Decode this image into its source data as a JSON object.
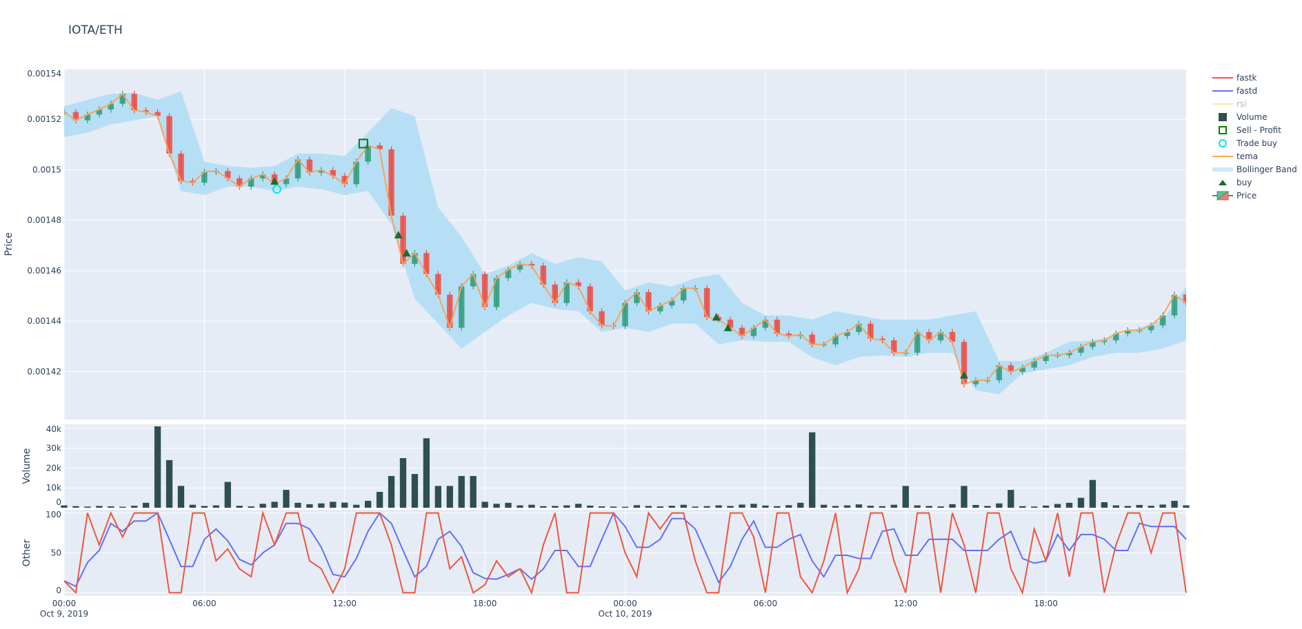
{
  "title": "IOTA/ETH",
  "colors": {
    "plot_bg": "#e5ecf6",
    "grid": "#ffffff",
    "text": "#2a3f5f",
    "fastk": "#ef553b",
    "fastd": "#636efa",
    "rsi": "#fde2a5",
    "volume": "#2f4f4f",
    "sell_profit": "#008000",
    "trade_buy": "#00e5ee",
    "tema": "#f8a35c",
    "bollinger": "#b6dff5",
    "buy": "#1a6b32",
    "increasing": "#2e9c7a",
    "decreasing": "#ef4a3f"
  },
  "legend": {
    "placement": "right",
    "items": [
      {
        "label": "fastk",
        "symbol": "line",
        "color_key": "fastk"
      },
      {
        "label": "fastd",
        "symbol": "line",
        "color_key": "fastd"
      },
      {
        "label": "rsi",
        "symbol": "line-faded",
        "color_key": "rsi"
      },
      {
        "label": "Volume",
        "symbol": "square",
        "color_key": "volume"
      },
      {
        "label": "Sell - Profit",
        "symbol": "square-open",
        "color_key": "sell_profit"
      },
      {
        "label": "Trade buy",
        "symbol": "circle-open",
        "color_key": "trade_buy"
      },
      {
        "label": "tema",
        "symbol": "line",
        "color_key": "tema"
      },
      {
        "label": "Bollinger Band",
        "symbol": "band",
        "color_key": "bollinger"
      },
      {
        "label": "buy",
        "symbol": "triangle-up",
        "color_key": "buy"
      },
      {
        "label": "Price",
        "symbol": "candle",
        "color_key": "increasing"
      }
    ]
  },
  "chart_data": {
    "type": "candlestick-with-subplots",
    "title": "IOTA/ETH",
    "x_range": [
      "2019-10-09 00:00",
      "2019-10-11 00:00"
    ],
    "interval": "30min",
    "x_ticks": [
      {
        "time": "2019-10-09 00:00",
        "label": "00:00",
        "sub": "Oct 9, 2019"
      },
      {
        "time": "2019-10-09 06:00",
        "label": "06:00",
        "sub": ""
      },
      {
        "time": "2019-10-09 12:00",
        "label": "12:00",
        "sub": ""
      },
      {
        "time": "2019-10-09 18:00",
        "label": "18:00",
        "sub": ""
      },
      {
        "time": "2019-10-10 00:00",
        "label": "00:00",
        "sub": "Oct 10, 2019"
      },
      {
        "time": "2019-10-10 06:00",
        "label": "06:00",
        "sub": ""
      },
      {
        "time": "2019-10-10 12:00",
        "label": "12:00",
        "sub": ""
      },
      {
        "time": "2019-10-10 18:00",
        "label": "18:00",
        "sub": ""
      }
    ],
    "price_panel": {
      "ylabel": "Price",
      "ylim": [
        0.001401,
        0.00154
      ],
      "y_ticks": [
        {
          "value": 0.00142,
          "label": "0.00142"
        },
        {
          "value": 0.00144,
          "label": "0.00144"
        },
        {
          "value": 0.00146,
          "label": "0.00146"
        },
        {
          "value": 0.00148,
          "label": "0.00148"
        },
        {
          "value": 0.0015,
          "label": "0.0015"
        },
        {
          "value": 0.00152,
          "label": "0.00152"
        },
        {
          "value": 0.00154,
          "label": "0.00154"
        }
      ],
      "close": [
        0.0015229,
        0.0015196,
        0.0015219,
        0.0015239,
        0.0015262,
        0.0015301,
        0.0015236,
        0.0015229,
        0.0015213,
        0.0015064,
        0.0014956,
        0.0014949,
        0.0014992,
        0.0014995,
        0.0014966,
        0.0014933,
        0.0014966,
        0.0014982,
        0.0014943,
        0.0014966,
        0.0015041,
        0.0014989,
        0.0014999,
        0.0014976,
        0.0014943,
        0.0015032,
        0.0015097,
        0.0015081,
        0.0014818,
        0.0014627,
        0.001467,
        0.0014587,
        0.0014505,
        0.0014374,
        0.0014538,
        0.0014587,
        0.0014456,
        0.0014571,
        0.0014604,
        0.0014627,
        0.001462,
        0.0014545,
        0.0014472,
        0.0014554,
        0.0014538,
        0.0014439,
        0.0014383,
        0.001438,
        0.0014472,
        0.0014515,
        0.0014439,
        0.0014462,
        0.0014482,
        0.0014531,
        0.0014531,
        0.0014416,
        0.0014406,
        0.0014374,
        0.0014341,
        0.0014374,
        0.0014406,
        0.0014351,
        0.0014341,
        0.0014347,
        0.0014308,
        0.0014308,
        0.0014341,
        0.0014357,
        0.001439,
        0.0014331,
        0.0014324,
        0.0014275,
        0.0014275,
        0.0014357,
        0.0014324,
        0.0014357,
        0.0014318,
        0.001415,
        0.0014166,
        0.0014166,
        0.0014225,
        0.0014199,
        0.0014216,
        0.0014242,
        0.0014265,
        0.0014265,
        0.0014275,
        0.0014298,
        0.0014318,
        0.0014324,
        0.0014351,
        0.0014364,
        0.0014364,
        0.0014383,
        0.0014423,
        0.0014505,
        0.0014472
      ],
      "bollinger_hourly": {
        "upper": [
          0.0015252,
          0.0015278,
          0.0015301,
          0.0015305,
          0.0015278,
          0.0015311,
          0.0015032,
          0.0015015,
          0.0015008,
          0.0015015,
          0.0015064,
          0.0015064,
          0.0015055,
          0.0015147,
          0.0015245,
          0.0015212,
          0.0014851,
          0.0014735,
          0.0014587,
          0.001462,
          0.001467,
          0.0014627,
          0.0014653,
          0.0014637,
          0.0014522,
          0.0014554,
          0.0014538,
          0.0014571,
          0.0014587,
          0.0014472,
          0.0014423,
          0.0014423,
          0.0014406,
          0.0014439,
          0.0014423,
          0.0014406,
          0.0014406,
          0.0014406,
          0.0014423,
          0.0014439,
          0.0014242,
          0.0014242,
          0.0014275,
          0.0014318,
          0.0014324,
          0.0014341,
          0.0014374,
          0.0014406,
          0.0014538
        ],
        "lower": [
          0.001513,
          0.0015147,
          0.001518,
          0.0015196,
          0.0015212,
          0.0014916,
          0.00149,
          0.0014933,
          0.0014933,
          0.0014916,
          0.0014933,
          0.0014923,
          0.00149,
          0.0014916,
          0.0014785,
          0.0014489,
          0.001439,
          0.0014291,
          0.0014357,
          0.0014423,
          0.0014472,
          0.0014449,
          0.0014439,
          0.0014357,
          0.0014374,
          0.0014357,
          0.001439,
          0.001439,
          0.0014308,
          0.0014324,
          0.0014318,
          0.0014318,
          0.0014258,
          0.0014225,
          0.0014258,
          0.0014265,
          0.0014258,
          0.0014275,
          0.0014275,
          0.0014127,
          0.001411,
          0.0014193,
          0.0014209,
          0.0014225,
          0.0014258,
          0.0014275,
          0.0014275,
          0.0014291,
          0.0014324
        ]
      },
      "buy": [
        {
          "time": "2019-10-09 09:00",
          "price": 0.0014955
        },
        {
          "time": "2019-10-09 14:18",
          "price": 0.0014742
        },
        {
          "time": "2019-10-09 14:39",
          "price": 0.001467
        },
        {
          "time": "2019-10-10 03:54",
          "price": 0.0014416
        },
        {
          "time": "2019-10-10 04:24",
          "price": 0.0014374
        },
        {
          "time": "2019-10-10 14:30",
          "price": 0.0014186
        }
      ],
      "trade_buy": [
        {
          "time": "2019-10-09 09:06",
          "price": 0.0014923
        }
      ],
      "sell_profit": [
        {
          "time": "2019-10-09 12:48",
          "price": 0.0015104
        }
      ]
    },
    "volume_panel": {
      "ylabel": "Volume",
      "ylim": [
        0,
        42000
      ],
      "y_ticks": [
        {
          "value": 0,
          "label": "0"
        },
        {
          "value": 10000,
          "label": "10k"
        },
        {
          "value": 20000,
          "label": "20k"
        },
        {
          "value": 30000,
          "label": "30k"
        },
        {
          "value": 40000,
          "label": "40k"
        }
      ],
      "values": [
        1200,
        800,
        600,
        900,
        700,
        500,
        1000,
        2500,
        41000,
        24000,
        11000,
        1500,
        900,
        1200,
        13000,
        1000,
        700,
        2000,
        3000,
        9000,
        2500,
        1800,
        2200,
        3000,
        2600,
        1500,
        3500,
        8000,
        16000,
        25000,
        17000,
        35000,
        11000,
        11000,
        16000,
        16000,
        3000,
        2000,
        2500,
        1200,
        1500,
        800,
        900,
        1200,
        2000,
        1100,
        700,
        600,
        500,
        1300,
        900,
        700,
        1000,
        1500,
        600,
        800,
        1200,
        900,
        1600,
        2000,
        1100,
        800,
        1300,
        2500,
        38000,
        1500,
        900,
        1200,
        1700,
        1000,
        800,
        1500,
        11000,
        1200,
        900,
        700,
        1800,
        11000,
        1400,
        900,
        2200,
        9000,
        800,
        600,
        1100,
        1900,
        2500,
        5000,
        14000,
        2800,
        1200,
        900,
        1400,
        1000,
        1600,
        3500,
        1200
      ]
    },
    "other_panel": {
      "ylabel": "Other",
      "ylim": [
        -4,
        104
      ],
      "y_ticks": [
        {
          "value": 0,
          "label": "0"
        },
        {
          "value": 50,
          "label": "50"
        },
        {
          "value": 100,
          "label": "100"
        }
      ],
      "series": [
        {
          "name": "fastk",
          "color_key": "fastk",
          "values": [
            15,
            0,
            100,
            60,
            100,
            70,
            100,
            100,
            100,
            0,
            0,
            100,
            100,
            40,
            55,
            30,
            20,
            100,
            60,
            100,
            100,
            40,
            30,
            0,
            30,
            100,
            100,
            100,
            60,
            0,
            0,
            100,
            100,
            30,
            45,
            0,
            10,
            40,
            20,
            30,
            0,
            60,
            100,
            0,
            0,
            100,
            100,
            100,
            50,
            20,
            100,
            80,
            100,
            100,
            40,
            0,
            0,
            100,
            100,
            70,
            0,
            100,
            100,
            20,
            0,
            40,
            100,
            0,
            30,
            100,
            100,
            40,
            0,
            100,
            100,
            0,
            100,
            60,
            0,
            100,
            100,
            30,
            0,
            80,
            40,
            100,
            20,
            100,
            100,
            0,
            60,
            100,
            100,
            50,
            100,
            100,
            0
          ]
        },
        {
          "name": "fastd",
          "color_key": "fastd",
          "values": [
            15,
            8,
            38,
            53,
            87,
            77,
            90,
            90,
            100,
            67,
            33,
            33,
            67,
            80,
            65,
            42,
            35,
            50,
            60,
            87,
            87,
            80,
            57,
            23,
            20,
            43,
            77,
            100,
            87,
            53,
            20,
            33,
            67,
            77,
            58,
            25,
            18,
            17,
            23,
            30,
            17,
            30,
            53,
            53,
            33,
            33,
            67,
            100,
            83,
            57,
            57,
            67,
            93,
            93,
            80,
            47,
            13,
            33,
            67,
            90,
            57,
            57,
            67,
            73,
            40,
            20,
            47,
            47,
            43,
            43,
            77,
            80,
            47,
            47,
            67,
            67,
            67,
            53,
            53,
            53,
            67,
            77,
            43,
            37,
            40,
            73,
            53,
            73,
            73,
            67,
            53,
            53,
            87,
            83,
            83,
            83,
            67
          ]
        }
      ]
    }
  }
}
